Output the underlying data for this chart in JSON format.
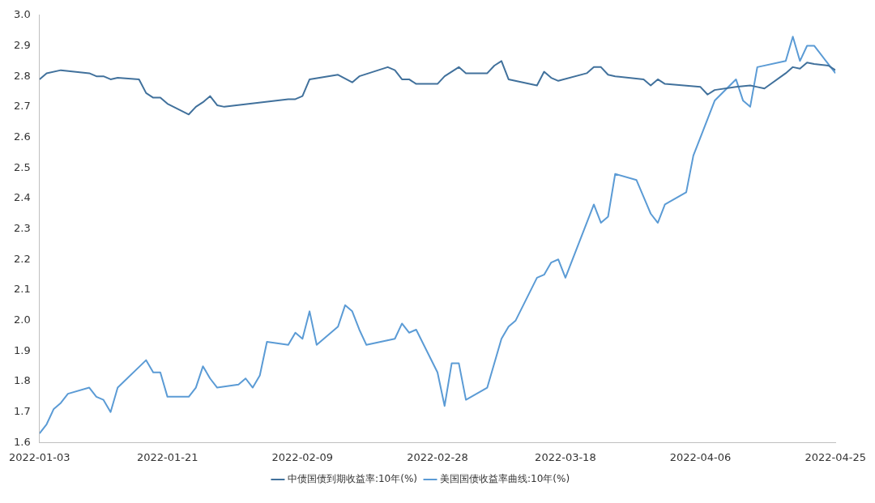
{
  "chart_data": {
    "type": "line",
    "xlim": [
      "2022-01-03",
      "2022-04-25"
    ],
    "xticks": [
      "2022-01-03",
      "2022-01-21",
      "2022-02-09",
      "2022-02-28",
      "2022-03-18",
      "2022-04-06",
      "2022-04-25"
    ],
    "ylim": [
      1.6,
      3.0
    ],
    "yticks": [
      {
        "value": 1.6,
        "label": "1.6"
      },
      {
        "value": 1.7,
        "label": "1.7"
      },
      {
        "value": 1.8,
        "label": "1.8"
      },
      {
        "value": 1.9,
        "label": "1.9"
      },
      {
        "value": 2.0,
        "label": "2.0"
      },
      {
        "value": 2.1,
        "label": "2.1"
      },
      {
        "value": 2.2,
        "label": "2.2"
      },
      {
        "value": 2.3,
        "label": "2.3"
      },
      {
        "value": 2.4,
        "label": "2.4"
      },
      {
        "value": 2.5,
        "label": "2.5"
      },
      {
        "value": 2.6,
        "label": "2.6"
      },
      {
        "value": 2.7,
        "label": "2.7"
      },
      {
        "value": 2.8,
        "label": "2.8"
      },
      {
        "value": 2.9,
        "label": "2.9"
      },
      {
        "value": 3.0,
        "label": "3.0"
      }
    ],
    "grid": false,
    "legend": "bottom",
    "marker": "none",
    "line_style": "solid",
    "series": [
      {
        "name": "中债国债到期收益率:10年(%)",
        "color": "#41719c",
        "x": [
          "2022-01-03",
          "2022-01-04",
          "2022-01-06",
          "2022-01-10",
          "2022-01-11",
          "2022-01-12",
          "2022-01-13",
          "2022-01-14",
          "2022-01-17",
          "2022-01-18",
          "2022-01-19",
          "2022-01-20",
          "2022-01-21",
          "2022-01-24",
          "2022-01-25",
          "2022-01-26",
          "2022-01-27",
          "2022-01-28",
          "2022-01-29",
          "2022-02-07",
          "2022-02-08",
          "2022-02-09",
          "2022-02-10",
          "2022-02-14",
          "2022-02-16",
          "2022-02-17",
          "2022-02-21",
          "2022-02-22",
          "2022-02-23",
          "2022-02-24",
          "2022-02-25",
          "2022-02-28",
          "2022-03-01",
          "2022-03-03",
          "2022-03-04",
          "2022-03-07",
          "2022-03-08",
          "2022-03-09",
          "2022-03-10",
          "2022-03-14",
          "2022-03-15",
          "2022-03-16",
          "2022-03-17",
          "2022-03-21",
          "2022-03-22",
          "2022-03-23",
          "2022-03-24",
          "2022-03-25",
          "2022-03-29",
          "2022-03-30",
          "2022-03-31",
          "2022-04-01",
          "2022-04-06",
          "2022-04-07",
          "2022-04-08",
          "2022-04-11",
          "2022-04-13",
          "2022-04-14",
          "2022-04-15",
          "2022-04-18",
          "2022-04-19",
          "2022-04-20",
          "2022-04-21",
          "2022-04-22",
          "2022-04-24",
          "2022-04-25"
        ],
        "values": [
          2.79,
          2.81,
          2.82,
          2.81,
          2.8,
          2.8,
          2.79,
          2.795,
          2.79,
          2.745,
          2.73,
          2.73,
          2.71,
          2.675,
          2.7,
          2.715,
          2.735,
          2.705,
          2.7,
          2.725,
          2.725,
          2.735,
          2.79,
          2.805,
          2.78,
          2.8,
          2.83,
          2.82,
          2.79,
          2.79,
          2.775,
          2.775,
          2.8,
          2.83,
          2.81,
          2.81,
          2.835,
          2.85,
          2.79,
          2.77,
          2.815,
          2.795,
          2.785,
          2.81,
          2.83,
          2.83,
          2.805,
          2.8,
          2.79,
          2.77,
          2.79,
          2.775,
          2.765,
          2.74,
          2.755,
          2.765,
          2.77,
          2.765,
          2.76,
          2.81,
          2.83,
          2.825,
          2.845,
          2.84,
          2.835,
          2.82
        ]
      },
      {
        "name": "美国国债收益率曲线:10年(%)",
        "color": "#5b9bd5",
        "x": [
          "2022-01-03",
          "2022-01-04",
          "2022-01-05",
          "2022-01-06",
          "2022-01-07",
          "2022-01-10",
          "2022-01-11",
          "2022-01-12",
          "2022-01-13",
          "2022-01-14",
          "2022-01-18",
          "2022-01-19",
          "2022-01-20",
          "2022-01-21",
          "2022-01-24",
          "2022-01-25",
          "2022-01-26",
          "2022-01-27",
          "2022-01-28",
          "2022-01-31",
          "2022-02-01",
          "2022-02-02",
          "2022-02-03",
          "2022-02-04",
          "2022-02-07",
          "2022-02-08",
          "2022-02-09",
          "2022-02-10",
          "2022-02-11",
          "2022-02-14",
          "2022-02-15",
          "2022-02-16",
          "2022-02-17",
          "2022-02-18",
          "2022-02-22",
          "2022-02-23",
          "2022-02-24",
          "2022-02-25",
          "2022-02-28",
          "2022-03-01",
          "2022-03-02",
          "2022-03-03",
          "2022-03-04",
          "2022-03-07",
          "2022-03-09",
          "2022-03-10",
          "2022-03-11",
          "2022-03-14",
          "2022-03-15",
          "2022-03-16",
          "2022-03-17",
          "2022-03-18",
          "2022-03-22",
          "2022-03-23",
          "2022-03-24",
          "2022-03-25",
          "2022-03-28",
          "2022-03-30",
          "2022-03-31",
          "2022-04-01",
          "2022-04-04",
          "2022-04-05",
          "2022-04-06",
          "2022-04-08",
          "2022-04-11",
          "2022-04-12",
          "2022-04-13",
          "2022-04-14",
          "2022-04-18",
          "2022-04-19",
          "2022-04-20",
          "2022-04-21",
          "2022-04-22",
          "2022-04-25"
        ],
        "values": [
          1.63,
          1.66,
          1.71,
          1.73,
          1.76,
          1.78,
          1.75,
          1.74,
          1.7,
          1.78,
          1.87,
          1.83,
          1.83,
          1.75,
          1.75,
          1.78,
          1.85,
          1.81,
          1.78,
          1.79,
          1.81,
          1.78,
          1.82,
          1.93,
          1.92,
          1.96,
          1.94,
          2.03,
          1.92,
          1.98,
          2.05,
          2.03,
          1.97,
          1.92,
          1.94,
          1.99,
          1.96,
          1.97,
          1.83,
          1.72,
          1.86,
          1.86,
          1.74,
          1.78,
          1.94,
          1.98,
          2.0,
          2.14,
          2.15,
          2.19,
          2.2,
          2.14,
          2.38,
          2.32,
          2.34,
          2.48,
          2.46,
          2.35,
          2.32,
          2.38,
          2.42,
          2.54,
          2.6,
          2.72,
          2.79,
          2.72,
          2.7,
          2.83,
          2.85,
          2.93,
          2.85,
          2.9,
          2.9,
          2.81
        ]
      }
    ]
  }
}
